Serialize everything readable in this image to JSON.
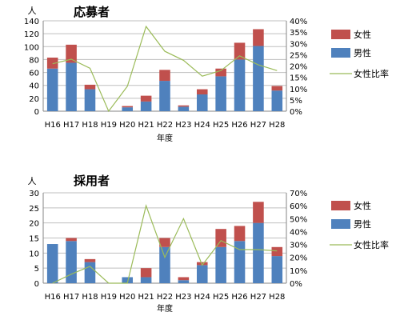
{
  "chart_data": [
    {
      "type": "bar",
      "title": "応募者",
      "y_unit": "人",
      "xlabel": "年度",
      "stacked": true,
      "categories": [
        "H16",
        "H17",
        "H18",
        "H19",
        "H20",
        "H21",
        "H22",
        "H23",
        "H24",
        "H25",
        "H26",
        "H27",
        "H28"
      ],
      "y_ticks": [
        "0",
        "20",
        "40",
        "60",
        "80",
        "100",
        "120",
        "140"
      ],
      "y2_ticks": [
        "0%",
        "5%",
        "10%",
        "15%",
        "20%",
        "25%",
        "30%",
        "35%",
        "40%"
      ],
      "ylim": [
        0,
        140
      ],
      "y2lim": [
        0,
        0.4
      ],
      "series": [
        {
          "name": "男性",
          "kind": "bar",
          "color": "#4f81bd",
          "values": [
            66,
            75,
            34,
            0,
            6,
            15,
            47,
            7,
            26,
            54,
            80,
            101,
            32
          ]
        },
        {
          "name": "女性",
          "kind": "bar",
          "color": "#c0504d",
          "values": [
            17,
            28,
            7,
            0,
            2,
            9,
            17,
            2,
            8,
            12,
            26,
            26,
            7
          ]
        },
        {
          "name": "女性比率",
          "kind": "line",
          "axis": "right",
          "color": "#9bbb59",
          "values": [
            0.21,
            0.23,
            0.19,
            0.0,
            0.11,
            0.375,
            0.265,
            0.225,
            0.155,
            0.18,
            0.245,
            0.205,
            0.18
          ]
        }
      ],
      "legend": "right"
    },
    {
      "type": "bar",
      "title": "採用者",
      "y_unit": "人",
      "xlabel": "年度",
      "stacked": true,
      "categories": [
        "H16",
        "H17",
        "H18",
        "H19",
        "H20",
        "H21",
        "H22",
        "H23",
        "H24",
        "H25",
        "H26",
        "H27",
        "H28"
      ],
      "y_ticks": [
        "0",
        "5",
        "10",
        "15",
        "20",
        "25",
        "30"
      ],
      "y2_ticks": [
        "0%",
        "10%",
        "20%",
        "30%",
        "40%",
        "50%",
        "60%",
        "70%"
      ],
      "ylim": [
        0,
        30
      ],
      "y2lim": [
        0,
        0.7
      ],
      "series": [
        {
          "name": "男性",
          "kind": "bar",
          "color": "#4f81bd",
          "values": [
            13,
            14,
            7,
            0,
            2,
            2,
            12,
            1,
            6,
            12,
            14,
            20,
            9
          ]
        },
        {
          "name": "女性",
          "kind": "bar",
          "color": "#c0504d",
          "values": [
            0,
            1,
            1,
            0,
            0,
            3,
            3,
            1,
            1,
            6,
            5,
            7,
            3
          ]
        },
        {
          "name": "女性比率",
          "kind": "line",
          "axis": "right",
          "color": "#9bbb59",
          "values": [
            0.0,
            0.07,
            0.13,
            0.0,
            0.0,
            0.6,
            0.2,
            0.5,
            0.14,
            0.33,
            0.26,
            0.26,
            0.25
          ]
        }
      ],
      "legend": "right"
    }
  ]
}
